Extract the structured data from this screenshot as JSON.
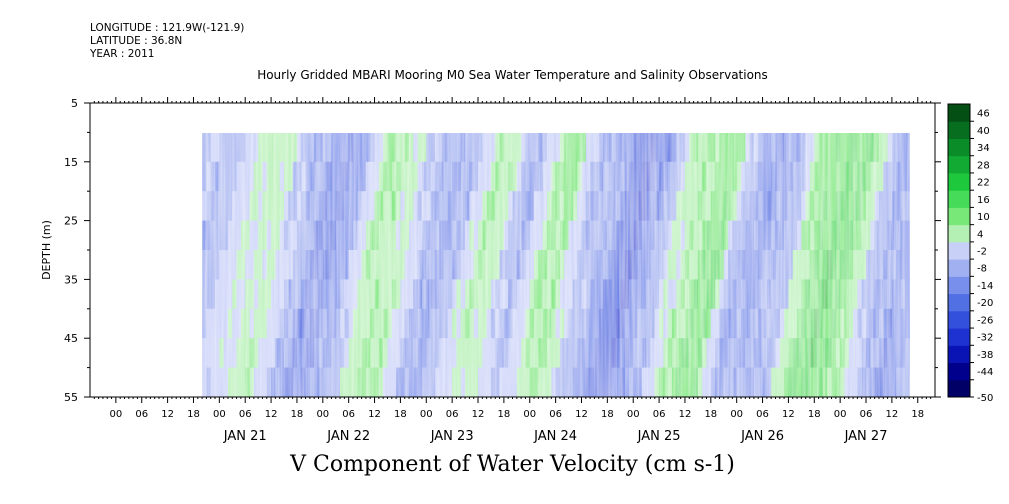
{
  "header": {
    "longitude": "LONGITUDE : 121.9W(-121.9)",
    "latitude": "LATITUDE : 36.8N",
    "year": "YEAR : 2011",
    "title": "Hourly Gridded MBARI Mooring M0 Sea Water Temperature and Salinity Observations"
  },
  "footer": {
    "label": "V Component of Water Velocity (cm s-1)"
  },
  "chart_data": {
    "type": "heatmap",
    "title": "Hourly Gridded MBARI Mooring M0 Sea Water Temperature and Salinity Observations",
    "xlabel": "",
    "ylabel": "DEPTH (m)",
    "colorbar_label": "V Component of Water Velocity (cm s-1)",
    "x_range_hours": [
      -24,
      172
    ],
    "data_x_range_hours": [
      2,
      166
    ],
    "ylim": [
      5,
      55
    ],
    "y_inverted": true,
    "data_depth_range": [
      10,
      55
    ],
    "y_ticks": [
      5,
      15,
      25,
      35,
      45,
      55
    ],
    "y_tick_labels": [
      "5",
      "15",
      "25",
      "35",
      "45",
      "55"
    ],
    "x_hour_tick_labels": [
      "00",
      "06",
      "12",
      "18",
      "00",
      "06",
      "12",
      "18",
      "00",
      "06",
      "12",
      "18",
      "00",
      "06",
      "12",
      "18",
      "00",
      "06",
      "12",
      "18",
      "00",
      "06",
      "12",
      "18",
      "00",
      "06",
      "12",
      "18",
      "00",
      "06",
      "12",
      "18"
    ],
    "day_labels": [
      "JAN 21",
      "JAN 22",
      "JAN 23",
      "JAN 24",
      "JAN 25",
      "JAN 26",
      "JAN 27"
    ],
    "colorbar_levels": [
      -50,
      -44,
      -38,
      -32,
      -26,
      -20,
      -14,
      -8,
      -2,
      4,
      10,
      16,
      22,
      28,
      34,
      40,
      46
    ],
    "colorbar_tick_labels": [
      "-50",
      "-44",
      "-38",
      "-32",
      "-26",
      "-20",
      "-14",
      "-8",
      "-2",
      "4",
      "10",
      "16",
      "22",
      "28",
      "34",
      "40",
      "46"
    ],
    "colorbar_colors": [
      "#000066",
      "#00008c",
      "#0a14b4",
      "#1e32d2",
      "#3250dc",
      "#5070e4",
      "#7890ec",
      "#a0b0f0",
      "#c8d0f8",
      "#b4f0b4",
      "#78e878",
      "#46dc5a",
      "#1ec83c",
      "#12aa32",
      "#0a8c28",
      "#066e1e",
      "#045014"
    ],
    "approx_values_by_hour": [
      [
        2,
        -5
      ],
      [
        10,
        3
      ],
      [
        16,
        8
      ],
      [
        22,
        -6
      ],
      [
        28,
        -14
      ],
      [
        34,
        -10
      ],
      [
        40,
        10
      ],
      [
        46,
        8
      ],
      [
        52,
        -8
      ],
      [
        58,
        -8
      ],
      [
        64,
        6
      ],
      [
        68,
        9
      ],
      [
        74,
        -8
      ],
      [
        80,
        10
      ],
      [
        84,
        12
      ],
      [
        88,
        -4
      ],
      [
        94,
        -10
      ],
      [
        100,
        -20
      ],
      [
        106,
        -8
      ],
      [
        110,
        6
      ],
      [
        116,
        12
      ],
      [
        120,
        16
      ],
      [
        124,
        -6
      ],
      [
        130,
        -10
      ],
      [
        136,
        -8
      ],
      [
        140,
        12
      ],
      [
        146,
        18
      ],
      [
        152,
        14
      ],
      [
        158,
        -8
      ],
      [
        164,
        -12
      ],
      [
        166,
        -6
      ]
    ]
  }
}
